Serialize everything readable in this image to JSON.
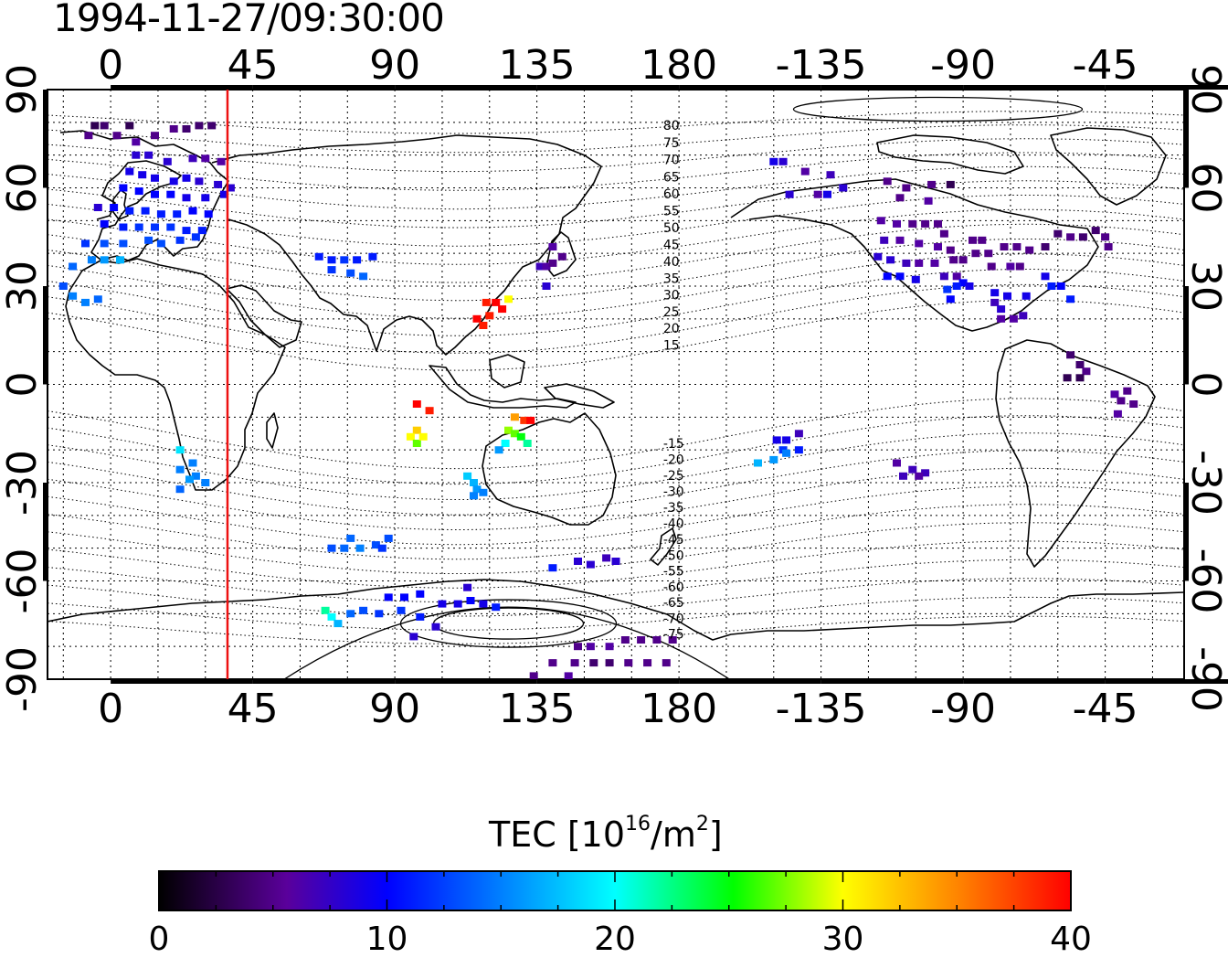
{
  "title": "1994-11-27/09:30:00",
  "map": {
    "lon_ticks": [
      "0",
      "45",
      "90",
      "135",
      "180",
      "-135",
      "-90",
      "-45"
    ],
    "lat_ticks": [
      "90",
      "60",
      "30",
      "0",
      "-30",
      "-60",
      "-90"
    ],
    "contour_labels": [
      "80",
      "75",
      "70",
      "65",
      "60",
      "55",
      "50",
      "45",
      "40",
      "35",
      "30",
      "25",
      "20",
      "15",
      "-15",
      "-20",
      "-25",
      "-30",
      "-35",
      "-40",
      "-45",
      "-50",
      "-55",
      "-60",
      "-65",
      "-70",
      "-75"
    ],
    "terminator_longitude": 37,
    "colors": {
      "terminator": "#ee1111",
      "grid": "#000000",
      "coast": "#000000"
    }
  },
  "colorbar": {
    "label_text": "TEC  [10",
    "label_sup1": "16",
    "label_mid": "/m",
    "label_sup2": "2",
    "label_end": "]",
    "ticks": [
      "0",
      "10",
      "20",
      "30",
      "40"
    ],
    "range": [
      0,
      40
    ],
    "colormap": [
      "#000000",
      "#5a009b",
      "#0000ff",
      "#00ffff",
      "#00ff00",
      "#ffff00",
      "#ff0000"
    ]
  },
  "chart_data": {
    "type": "scatter",
    "title": "1994-11-27/09:30:00",
    "xlabel": "",
    "ylabel": "",
    "xlim": [
      -20,
      340
    ],
    "ylim": [
      -90,
      90
    ],
    "value_label": "TEC  [10^16/m^2]",
    "value_range": [
      0,
      40
    ],
    "points": [
      {
        "lon": -5,
        "lat": 79,
        "tec": 3
      },
      {
        "lon": -2,
        "lat": 79,
        "tec": 4
      },
      {
        "lon": 6,
        "lat": 79,
        "tec": 3
      },
      {
        "lon": -7,
        "lat": 76,
        "tec": 5
      },
      {
        "lon": 2,
        "lat": 76,
        "tec": 5
      },
      {
        "lon": 8,
        "lat": 74,
        "tec": 6
      },
      {
        "lon": 14,
        "lat": 76,
        "tec": 5
      },
      {
        "lon": 20,
        "lat": 78,
        "tec": 5
      },
      {
        "lon": 24,
        "lat": 78,
        "tec": 4
      },
      {
        "lon": 28,
        "lat": 79,
        "tec": 4
      },
      {
        "lon": 32,
        "lat": 79,
        "tec": 4
      },
      {
        "lon": 8,
        "lat": 70,
        "tec": 8
      },
      {
        "lon": 12,
        "lat": 70,
        "tec": 8
      },
      {
        "lon": 18,
        "lat": 68,
        "tec": 8
      },
      {
        "lon": 26,
        "lat": 69,
        "tec": 7
      },
      {
        "lon": 30,
        "lat": 69,
        "tec": 6
      },
      {
        "lon": 35,
        "lat": 68,
        "tec": 6
      },
      {
        "lon": 6,
        "lat": 65,
        "tec": 9
      },
      {
        "lon": 10,
        "lat": 64,
        "tec": 9
      },
      {
        "lon": 14,
        "lat": 63,
        "tec": 9
      },
      {
        "lon": 20,
        "lat": 62,
        "tec": 9
      },
      {
        "lon": 24,
        "lat": 63,
        "tec": 9
      },
      {
        "lon": 28,
        "lat": 62,
        "tec": 8
      },
      {
        "lon": 34,
        "lat": 61,
        "tec": 8
      },
      {
        "lon": 38,
        "lat": 60,
        "tec": 8
      },
      {
        "lon": 4,
        "lat": 60,
        "tec": 10
      },
      {
        "lon": 9,
        "lat": 59,
        "tec": 10
      },
      {
        "lon": 14,
        "lat": 58,
        "tec": 10
      },
      {
        "lon": 19,
        "lat": 58,
        "tec": 10
      },
      {
        "lon": 24,
        "lat": 57,
        "tec": 9
      },
      {
        "lon": 30,
        "lat": 57,
        "tec": 9
      },
      {
        "lon": 36,
        "lat": 58,
        "tec": 9
      },
      {
        "lon": -4,
        "lat": 54,
        "tec": 8
      },
      {
        "lon": 1,
        "lat": 54,
        "tec": 10
      },
      {
        "lon": 6,
        "lat": 53,
        "tec": 11
      },
      {
        "lon": 11,
        "lat": 53,
        "tec": 11
      },
      {
        "lon": 16,
        "lat": 52,
        "tec": 11
      },
      {
        "lon": 21,
        "lat": 52,
        "tec": 11
      },
      {
        "lon": 26,
        "lat": 53,
        "tec": 10
      },
      {
        "lon": 31,
        "lat": 52,
        "tec": 10
      },
      {
        "lon": -2,
        "lat": 49,
        "tec": 10
      },
      {
        "lon": 4,
        "lat": 48,
        "tec": 11
      },
      {
        "lon": 9,
        "lat": 48,
        "tec": 12
      },
      {
        "lon": 14,
        "lat": 48,
        "tec": 12
      },
      {
        "lon": 19,
        "lat": 48,
        "tec": 12
      },
      {
        "lon": 24,
        "lat": 47,
        "tec": 11
      },
      {
        "lon": 29,
        "lat": 47,
        "tec": 11
      },
      {
        "lon": -8,
        "lat": 43,
        "tec": 12
      },
      {
        "lon": -2,
        "lat": 43,
        "tec": 13
      },
      {
        "lon": 4,
        "lat": 43,
        "tec": 13
      },
      {
        "lon": 12,
        "lat": 44,
        "tec": 13
      },
      {
        "lon": 16,
        "lat": 43,
        "tec": 13
      },
      {
        "lon": 22,
        "lat": 44,
        "tec": 12
      },
      {
        "lon": 27,
        "lat": 45,
        "tec": 12
      },
      {
        "lon": -6,
        "lat": 38,
        "tec": 15
      },
      {
        "lon": -2,
        "lat": 38,
        "tec": 16
      },
      {
        "lon": 3,
        "lat": 38,
        "tec": 17
      },
      {
        "lon": -12,
        "lat": 36,
        "tec": 14
      },
      {
        "lon": -15,
        "lat": 30,
        "tec": 13
      },
      {
        "lon": -12,
        "lat": 27,
        "tec": 15
      },
      {
        "lon": -8,
        "lat": 25,
        "tec": 15
      },
      {
        "lon": -4,
        "lat": 26,
        "tec": 14
      },
      {
        "lon": 22,
        "lat": -20,
        "tec": 19
      },
      {
        "lon": 26,
        "lat": -24,
        "tec": 15
      },
      {
        "lon": 22,
        "lat": -26,
        "tec": 15
      },
      {
        "lon": 27,
        "lat": -28,
        "tec": 15
      },
      {
        "lon": 25,
        "lat": -29,
        "tec": 16
      },
      {
        "lon": 22,
        "lat": -32,
        "tec": 14
      },
      {
        "lon": 30,
        "lat": -30,
        "tec": 15
      },
      {
        "lon": 66,
        "lat": 39,
        "tec": 11
      },
      {
        "lon": 70,
        "lat": 38,
        "tec": 11
      },
      {
        "lon": 74,
        "lat": 38,
        "tec": 12
      },
      {
        "lon": 78,
        "lat": 38,
        "tec": 11
      },
      {
        "lon": 70,
        "lat": 35,
        "tec": 12
      },
      {
        "lon": 76,
        "lat": 34,
        "tec": 13
      },
      {
        "lon": 83,
        "lat": 39,
        "tec": 11
      },
      {
        "lon": 80,
        "lat": 33,
        "tec": 14
      },
      {
        "lon": 140,
        "lat": 42,
        "tec": 6
      },
      {
        "lon": 136,
        "lat": 36,
        "tec": 7
      },
      {
        "lon": 138,
        "lat": 36,
        "tec": 6
      },
      {
        "lon": 140,
        "lat": 37,
        "tec": 5
      },
      {
        "lon": 143,
        "lat": 39,
        "tec": 5
      },
      {
        "lon": 138,
        "lat": 30,
        "tec": 8
      },
      {
        "lon": 126,
        "lat": 26,
        "tec": 30
      },
      {
        "lon": 122,
        "lat": 25,
        "tec": 40
      },
      {
        "lon": 119,
        "lat": 25,
        "tec": 39
      },
      {
        "lon": 124,
        "lat": 23,
        "tec": 40
      },
      {
        "lon": 120,
        "lat": 21,
        "tec": 39
      },
      {
        "lon": 116,
        "lat": 20,
        "tec": 40
      },
      {
        "lon": 118,
        "lat": 18,
        "tec": 39
      },
      {
        "lon": 97,
        "lat": -6,
        "tec": 40
      },
      {
        "lon": 101,
        "lat": -8,
        "tec": 39
      },
      {
        "lon": 97,
        "lat": -14,
        "tec": 32
      },
      {
        "lon": 95,
        "lat": -16,
        "tec": 30
      },
      {
        "lon": 97,
        "lat": -18,
        "tec": 27
      },
      {
        "lon": 99,
        "lat": -16,
        "tec": 30
      },
      {
        "lon": 128,
        "lat": -10,
        "tec": 34
      },
      {
        "lon": 131,
        "lat": -11,
        "tec": 38
      },
      {
        "lon": 133,
        "lat": -11,
        "tec": 40
      },
      {
        "lon": 126,
        "lat": -14,
        "tec": 28
      },
      {
        "lon": 128,
        "lat": -15,
        "tec": 27
      },
      {
        "lon": 130,
        "lat": -16,
        "tec": 25
      },
      {
        "lon": 132,
        "lat": -18,
        "tec": 22
      },
      {
        "lon": 125,
        "lat": -18,
        "tec": 20
      },
      {
        "lon": 123,
        "lat": -20,
        "tec": 16
      },
      {
        "lon": 113,
        "lat": -28,
        "tec": 18
      },
      {
        "lon": 115,
        "lat": -30,
        "tec": 17
      },
      {
        "lon": 116,
        "lat": -32,
        "tec": 16
      },
      {
        "lon": 118,
        "lat": -33,
        "tec": 15
      },
      {
        "lon": 115,
        "lat": -34,
        "tec": 15
      },
      {
        "lon": 70,
        "lat": -50,
        "tec": 13
      },
      {
        "lon": 74,
        "lat": -50,
        "tec": 14
      },
      {
        "lon": 79,
        "lat": -50,
        "tec": 15
      },
      {
        "lon": 84,
        "lat": -49,
        "tec": 13
      },
      {
        "lon": 88,
        "lat": -47,
        "tec": 13
      },
      {
        "lon": 86,
        "lat": -50,
        "tec": 12
      },
      {
        "lon": 76,
        "lat": -47,
        "tec": 14
      },
      {
        "lon": 68,
        "lat": -69,
        "tec": 22
      },
      {
        "lon": 70,
        "lat": -71,
        "tec": 20
      },
      {
        "lon": 72,
        "lat": -73,
        "tec": 17
      },
      {
        "lon": 76,
        "lat": -70,
        "tec": 14
      },
      {
        "lon": 80,
        "lat": -69,
        "tec": 13
      },
      {
        "lon": 85,
        "lat": -70,
        "tec": 12
      },
      {
        "lon": 88,
        "lat": -65,
        "tec": 10
      },
      {
        "lon": 93,
        "lat": -65,
        "tec": 10
      },
      {
        "lon": 98,
        "lat": -64,
        "tec": 10
      },
      {
        "lon": 92,
        "lat": -69,
        "tec": 12
      },
      {
        "lon": 98,
        "lat": -71,
        "tec": 11
      },
      {
        "lon": 105,
        "lat": -67,
        "tec": 9
      },
      {
        "lon": 110,
        "lat": -67,
        "tec": 9
      },
      {
        "lon": 114,
        "lat": -66,
        "tec": 10
      },
      {
        "lon": 118,
        "lat": -67,
        "tec": 9
      },
      {
        "lon": 122,
        "lat": -68,
        "tec": 11
      },
      {
        "lon": 113,
        "lat": -62,
        "tec": 8
      },
      {
        "lon": 103,
        "lat": -74,
        "tec": 8
      },
      {
        "lon": 96,
        "lat": -77,
        "tec": 8
      },
      {
        "lon": 140,
        "lat": -56,
        "tec": 11
      },
      {
        "lon": 148,
        "lat": -54,
        "tec": 8
      },
      {
        "lon": 152,
        "lat": -55,
        "tec": 8
      },
      {
        "lon": 157,
        "lat": -53,
        "tec": 7
      },
      {
        "lon": 160,
        "lat": -54,
        "tec": 8
      },
      {
        "lon": 148,
        "lat": -80,
        "tec": 5
      },
      {
        "lon": 152,
        "lat": -80,
        "tec": 6
      },
      {
        "lon": 158,
        "lat": -80,
        "tec": 6
      },
      {
        "lon": 163,
        "lat": -78,
        "tec": 5
      },
      {
        "lon": 168,
        "lat": -78,
        "tec": 5
      },
      {
        "lon": 173,
        "lat": -78,
        "tec": 5
      },
      {
        "lon": 178,
        "lat": -78,
        "tec": 5
      },
      {
        "lon": 140,
        "lat": -85,
        "tec": 5
      },
      {
        "lon": 147,
        "lat": -85,
        "tec": 5
      },
      {
        "lon": 153,
        "lat": -85,
        "tec": 4
      },
      {
        "lon": 158,
        "lat": -85,
        "tec": 4
      },
      {
        "lon": 164,
        "lat": -85,
        "tec": 5
      },
      {
        "lon": 170,
        "lat": -85,
        "tec": 5
      },
      {
        "lon": 176,
        "lat": -85,
        "tec": 5
      },
      {
        "lon": 134,
        "lat": -89,
        "tec": 5
      },
      {
        "lon": 145,
        "lat": -89,
        "tec": 6
      },
      {
        "lon": 210,
        "lat": 68,
        "tec": 9
      },
      {
        "lon": 213,
        "lat": 68,
        "tec": 8
      },
      {
        "lon": 220,
        "lat": 65,
        "tec": 6
      },
      {
        "lon": 228,
        "lat": 64,
        "tec": 7
      },
      {
        "lon": 232,
        "lat": 60,
        "tec": 8
      },
      {
        "lon": 224,
        "lat": 58,
        "tec": 6
      },
      {
        "lon": 215,
        "lat": 58,
        "tec": 8
      },
      {
        "lon": 227,
        "lat": 58,
        "tec": 9
      },
      {
        "lon": 246,
        "lat": 62,
        "tec": 5
      },
      {
        "lon": 252,
        "lat": 60,
        "tec": 5
      },
      {
        "lon": 260,
        "lat": 61,
        "tec": 5
      },
      {
        "lon": 266,
        "lat": 61,
        "tec": 3
      },
      {
        "lon": 259,
        "lat": 56,
        "tec": 6
      },
      {
        "lon": 250,
        "lat": 57,
        "tec": 5
      },
      {
        "lon": 244,
        "lat": 50,
        "tec": 6
      },
      {
        "lon": 249,
        "lat": 49,
        "tec": 6
      },
      {
        "lon": 254,
        "lat": 49,
        "tec": 5
      },
      {
        "lon": 258,
        "lat": 49,
        "tec": 5
      },
      {
        "lon": 262,
        "lat": 49,
        "tec": 5
      },
      {
        "lon": 264,
        "lat": 46,
        "tec": 5
      },
      {
        "lon": 245,
        "lat": 44,
        "tec": 7
      },
      {
        "lon": 250,
        "lat": 44,
        "tec": 6
      },
      {
        "lon": 256,
        "lat": 43,
        "tec": 6
      },
      {
        "lon": 262,
        "lat": 42,
        "tec": 6
      },
      {
        "lon": 266,
        "lat": 41,
        "tec": 5
      },
      {
        "lon": 243,
        "lat": 39,
        "tec": 8
      },
      {
        "lon": 247,
        "lat": 38,
        "tec": 8
      },
      {
        "lon": 252,
        "lat": 37,
        "tec": 7
      },
      {
        "lon": 256,
        "lat": 37,
        "tec": 6
      },
      {
        "lon": 261,
        "lat": 37,
        "tec": 6
      },
      {
        "lon": 267,
        "lat": 38,
        "tec": 5
      },
      {
        "lon": 246,
        "lat": 33,
        "tec": 10
      },
      {
        "lon": 250,
        "lat": 33,
        "tec": 10
      },
      {
        "lon": 255,
        "lat": 32,
        "tec": 9
      },
      {
        "lon": 264,
        "lat": 33,
        "tec": 7
      },
      {
        "lon": 268,
        "lat": 33,
        "tec": 6
      },
      {
        "lon": 270,
        "lat": 38,
        "tec": 5
      },
      {
        "lon": 274,
        "lat": 40,
        "tec": 5
      },
      {
        "lon": 278,
        "lat": 40,
        "tec": 5
      },
      {
        "lon": 283,
        "lat": 42,
        "tec": 5
      },
      {
        "lon": 287,
        "lat": 42,
        "tec": 5
      },
      {
        "lon": 291,
        "lat": 41,
        "tec": 5
      },
      {
        "lon": 279,
        "lat": 36,
        "tec": 5
      },
      {
        "lon": 285,
        "lat": 36,
        "tec": 6
      },
      {
        "lon": 288,
        "lat": 36,
        "tec": 5
      },
      {
        "lon": 296,
        "lat": 42,
        "tec": 4
      },
      {
        "lon": 300,
        "lat": 46,
        "tec": 4
      },
      {
        "lon": 304,
        "lat": 45,
        "tec": 5
      },
      {
        "lon": 308,
        "lat": 45,
        "tec": 4
      },
      {
        "lon": 312,
        "lat": 47,
        "tec": 4
      },
      {
        "lon": 315,
        "lat": 45,
        "tec": 5
      },
      {
        "lon": 316,
        "lat": 42,
        "tec": 5
      },
      {
        "lon": 273,
        "lat": 44,
        "tec": 5
      },
      {
        "lon": 276,
        "lat": 44,
        "tec": 5
      },
      {
        "lon": 270,
        "lat": 31,
        "tec": 10
      },
      {
        "lon": 268,
        "lat": 30,
        "tec": 11
      },
      {
        "lon": 272,
        "lat": 30,
        "tec": 9
      },
      {
        "lon": 265,
        "lat": 29,
        "tec": 12
      },
      {
        "lon": 266,
        "lat": 26,
        "tec": 10
      },
      {
        "lon": 280,
        "lat": 28,
        "tec": 9
      },
      {
        "lon": 284,
        "lat": 27,
        "tec": 9
      },
      {
        "lon": 290,
        "lat": 27,
        "tec": 9
      },
      {
        "lon": 296,
        "lat": 33,
        "tec": 9
      },
      {
        "lon": 301,
        "lat": 30,
        "tec": 10
      },
      {
        "lon": 304,
        "lat": 26,
        "tec": 11
      },
      {
        "lon": 298,
        "lat": 30,
        "tec": 11
      },
      {
        "lon": 280,
        "lat": 25,
        "tec": 7
      },
      {
        "lon": 282,
        "lat": 20,
        "tec": 6
      },
      {
        "lon": 286,
        "lat": 20,
        "tec": 6
      },
      {
        "lon": 289,
        "lat": 21,
        "tec": 7
      },
      {
        "lon": 282,
        "lat": 23,
        "tec": 8
      },
      {
        "lon": 304,
        "lat": 9,
        "tec": 4
      },
      {
        "lon": 307,
        "lat": 6,
        "tec": 4
      },
      {
        "lon": 309,
        "lat": 4,
        "tec": 5
      },
      {
        "lon": 307,
        "lat": 2,
        "tec": 3
      },
      {
        "lon": 303,
        "lat": 2,
        "tec": 3
      },
      {
        "lon": 318,
        "lat": -3,
        "tec": 6
      },
      {
        "lon": 322,
        "lat": -2,
        "tec": 5
      },
      {
        "lon": 320,
        "lat": -5,
        "tec": 5
      },
      {
        "lon": 324,
        "lat": -6,
        "tec": 5
      },
      {
        "lon": 319,
        "lat": -9,
        "tec": 6
      },
      {
        "lon": 218,
        "lat": -15,
        "tec": 7
      },
      {
        "lon": 214,
        "lat": -17,
        "tec": 9
      },
      {
        "lon": 211,
        "lat": -17,
        "tec": 9
      },
      {
        "lon": 213,
        "lat": -20,
        "tec": 12
      },
      {
        "lon": 218,
        "lat": -20,
        "tec": 11
      },
      {
        "lon": 210,
        "lat": -23,
        "tec": 16
      },
      {
        "lon": 214,
        "lat": -21,
        "tec": 15
      },
      {
        "lon": 205,
        "lat": -24,
        "tec": 17
      },
      {
        "lon": 249,
        "lat": -24,
        "tec": 6
      },
      {
        "lon": 254,
        "lat": -26,
        "tec": 7
      },
      {
        "lon": 258,
        "lat": -27,
        "tec": 7
      },
      {
        "lon": 251,
        "lat": -28,
        "tec": 7
      },
      {
        "lon": 256,
        "lat": -28,
        "tec": 6
      }
    ]
  }
}
